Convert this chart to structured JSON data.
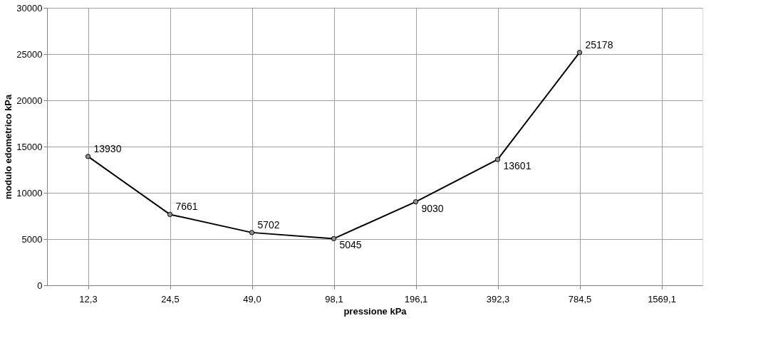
{
  "chart_data": {
    "type": "line",
    "xlabel": "pressione kPa",
    "ylabel": "modulo edometrico kPa",
    "categories": [
      "12,3",
      "24,5",
      "49,0",
      "98,1",
      "196,1",
      "392,3",
      "784,5",
      "1569,1"
    ],
    "series": [
      {
        "color": "#000000",
        "values": [
          13930,
          7661,
          5702,
          5045,
          9030,
          13601,
          25178,
          null
        ]
      }
    ],
    "ylim": [
      0,
      30000
    ],
    "yticks": [
      0,
      5000,
      10000,
      15000,
      20000,
      25000,
      30000
    ],
    "grid": true,
    "marker": "circle",
    "line_style": "solid",
    "data_labels": true
  }
}
